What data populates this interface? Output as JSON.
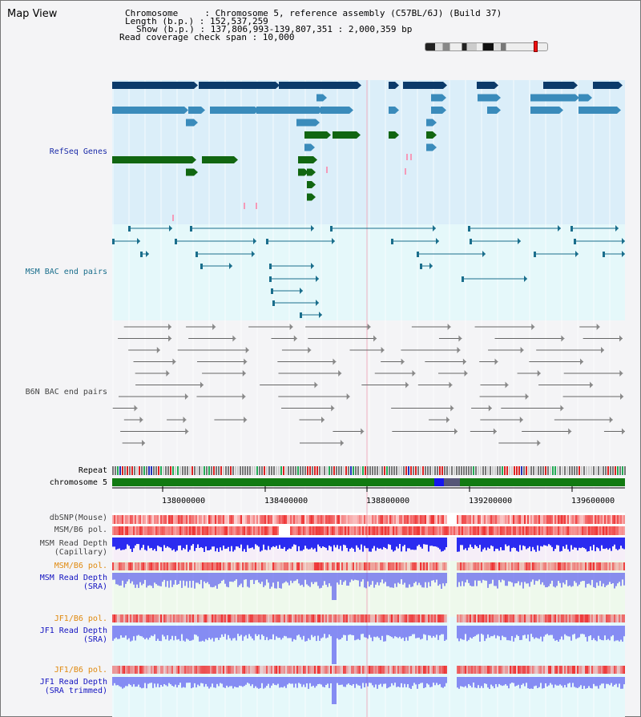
{
  "header": {
    "title": "Map View",
    "chromosome_line": "Chromosome     : Chromosome 5, reference assembly (C57BL/6J) (Build 37)",
    "length_line": "Length (b.p.) : 152,537,259",
    "show_line": "Show (b.p.) : 137,806,993-139,807,351 : 2,000,359 bp",
    "coverage_line": "Read coverage check span : 10,000"
  },
  "labels": {
    "refseq": "RefSeq Genes",
    "msm_bac": "MSM BAC end pairs",
    "b6n_bac": "B6N BAC end pairs",
    "repeat": "Repeat",
    "chromosome": "chromosome 5",
    "dbsnp": "dbSNP(Mouse)",
    "msm_b6_pol": "MSM/B6 pol.",
    "msm_depth_cap": "MSM Read Depth\n(Capillary)",
    "msm_b6_pol_2": "MSM/B6 pol.",
    "msm_depth_sra": "MSM Read Depth\n(SRA)",
    "jf1_b6_pol": "JF1/B6 pol.",
    "jf1_depth_sra": "JF1 Read Depth\n(SRA)",
    "jf1_b6_pol_2": "JF1/B6 pol.",
    "jf1_depth_trim": "JF1 Read Depth\n(SRA trimmed)"
  },
  "axis": {
    "ticks": [
      "138000000",
      "138400000",
      "138800000",
      "139200000",
      "139600000"
    ]
  },
  "colors": {
    "refseq_bg": "#dbeef9",
    "msm_bac_bg": "#e5f8fa",
    "b6n_bg": "#f4f4f6",
    "gene_dark": "#0b3a6a",
    "gene_mid": "#3a8bbb",
    "gene_green": "#116611",
    "bac_teal": "#1a6e8c",
    "b6n_gray": "#666666",
    "chrom_green": "#117a11",
    "depth_blue": "#1515ee",
    "pol_red": "#ee3333"
  }
}
